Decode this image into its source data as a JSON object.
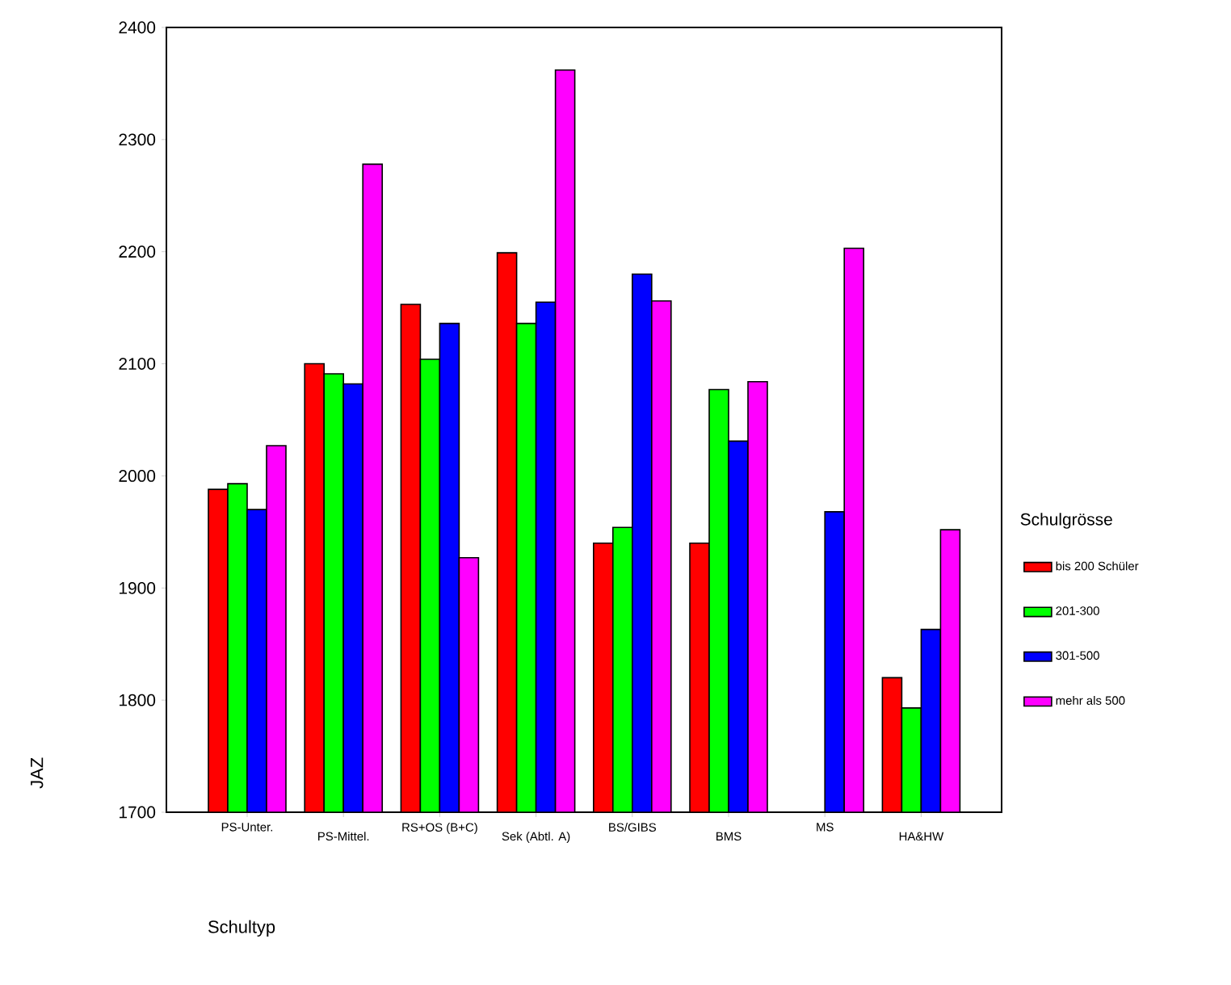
{
  "chart_data": {
    "type": "bar",
    "xlabel": "Schultyp",
    "ylabel": "JAZ",
    "legend_title": "Schulgrösse",
    "categories": [
      "PS-Unter.",
      "PS-Mittel.",
      "RS+OS (B+C)",
      "Sek (Abtl. A)",
      "BS/GIBS",
      "BMS",
      "MS",
      "HA&HW"
    ],
    "series": [
      {
        "name": "bis 200 Schüler",
        "color": "#ff0000",
        "values": [
          1988,
          2100,
          2153,
          2199,
          1940,
          1940,
          null,
          1820
        ]
      },
      {
        "name": "201-300",
        "color": "#00ff00",
        "values": [
          1993,
          2091,
          2104,
          2136,
          1954,
          2077,
          null,
          1793
        ]
      },
      {
        "name": "301-500",
        "color": "#0000ff",
        "values": [
          1970,
          2082,
          2136,
          2155,
          2180,
          2031,
          1968,
          1863
        ]
      },
      {
        "name": "mehr als 500",
        "color": "#ff00ff",
        "values": [
          2027,
          2278,
          1927,
          2362,
          2156,
          2084,
          2203,
          1952
        ]
      }
    ],
    "ylim": [
      1700,
      2400
    ],
    "yticks": [
      1700,
      1800,
      1900,
      2000,
      2100,
      2200,
      2300,
      2400
    ],
    "grid": false,
    "legend": "right"
  }
}
